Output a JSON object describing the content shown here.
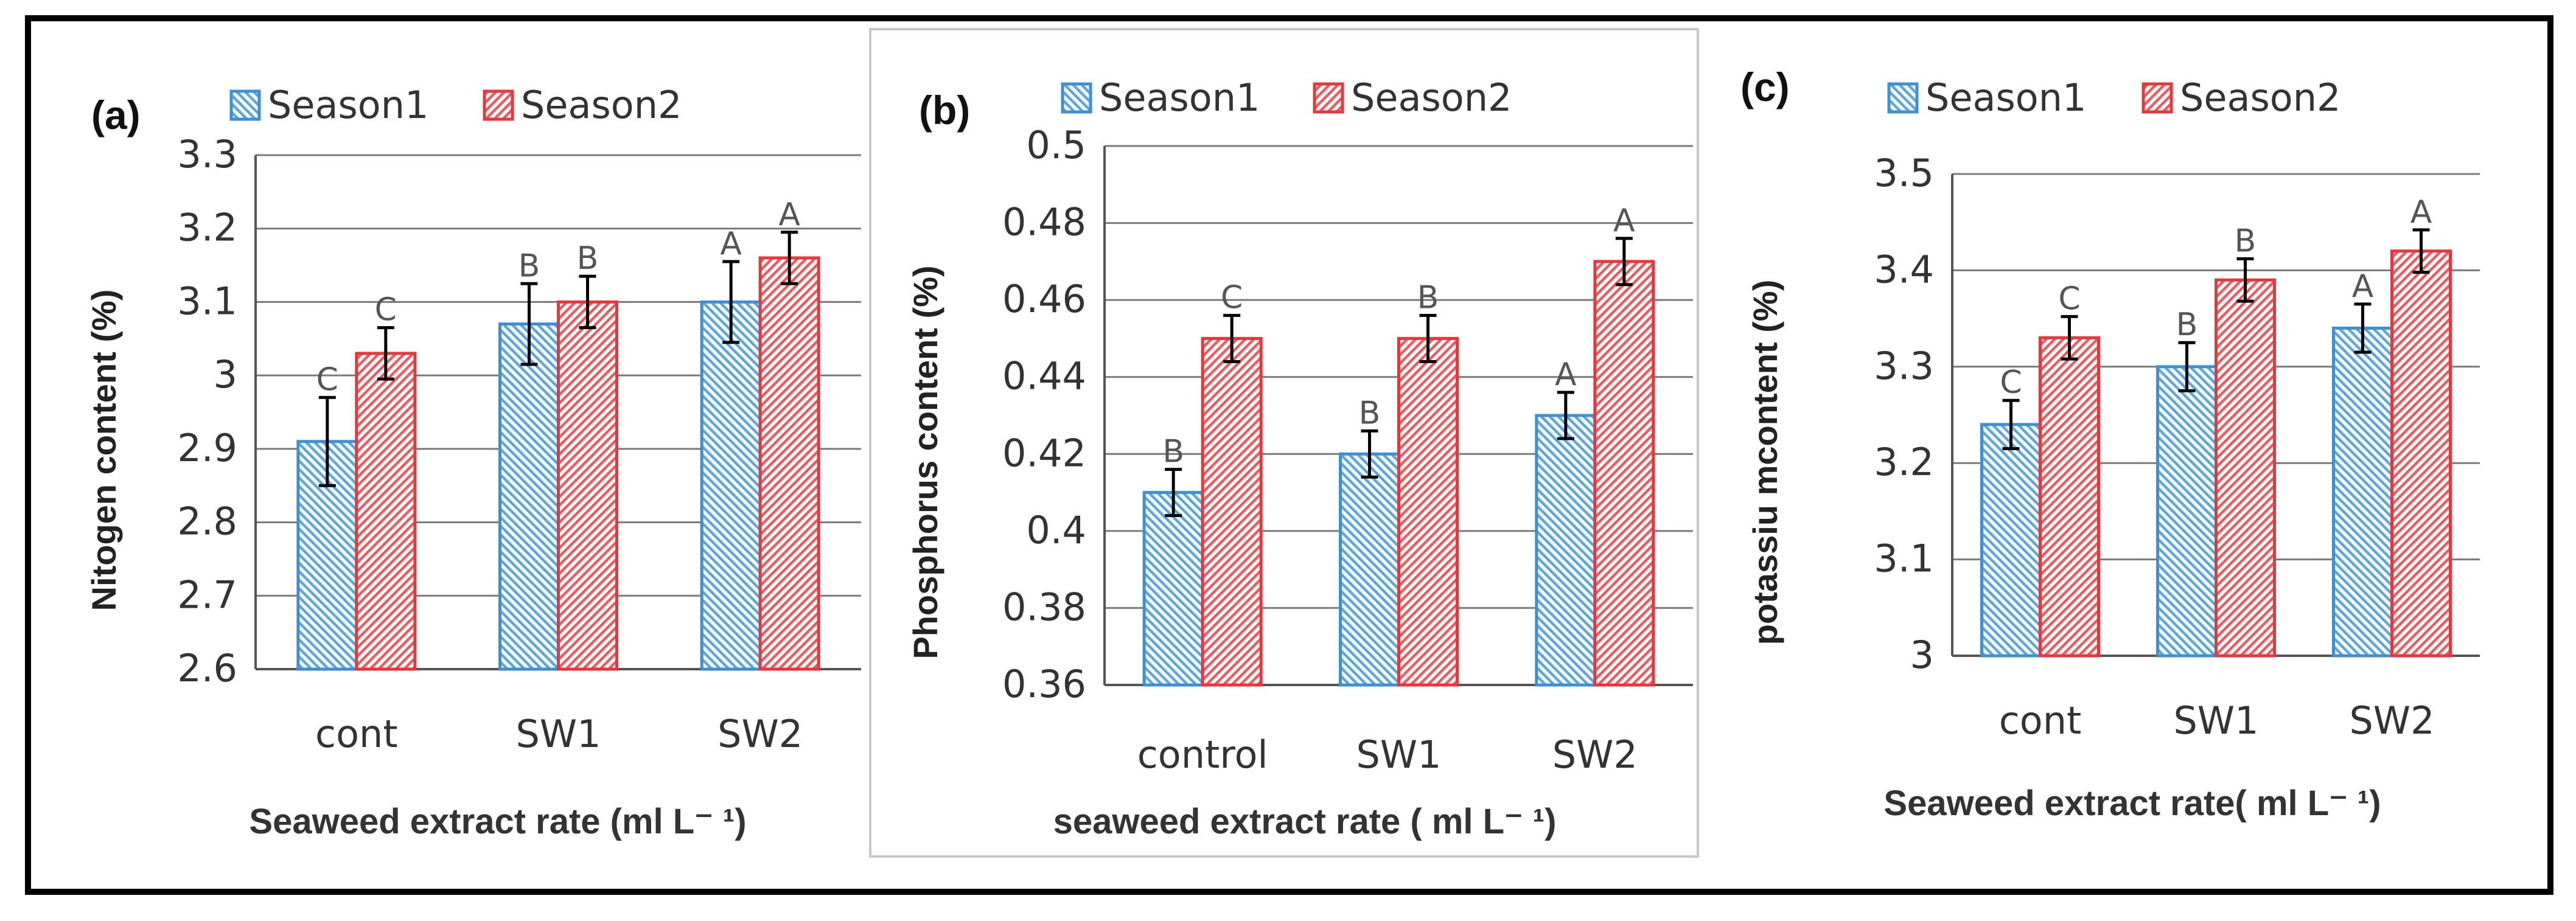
{
  "colors": {
    "season1_stroke": "#3d8fd6",
    "season1_hatch": "#5aa7e6",
    "season2_stroke": "#e8363b",
    "season2_hatch": "#ef5a5e",
    "grid": "#7a7a7a",
    "frame": "#000000"
  },
  "legend": {
    "season1": "Season1",
    "season2": "Season2"
  },
  "chart_data": [
    {
      "type": "bar",
      "panel": "(a)",
      "categories": [
        "cont",
        "SW1",
        "SW2"
      ],
      "series": [
        {
          "name": "Season1",
          "values": [
            2.91,
            3.07,
            3.1
          ],
          "errors": [
            0.06,
            0.055,
            0.055
          ],
          "letters": [
            "C",
            "B",
            "A"
          ]
        },
        {
          "name": "Season2",
          "values": [
            3.03,
            3.1,
            3.16
          ],
          "errors": [
            0.035,
            0.035,
            0.035
          ],
          "letters": [
            "C",
            "B",
            "A"
          ]
        }
      ],
      "ylabel": "Nitogen content (%)",
      "xlabel": "Seaweed extract rate (ml L⁻ ¹)",
      "ylim": [
        2.6,
        3.3
      ],
      "yticks": [
        "2.6",
        "2.7",
        "2.8",
        "2.9",
        "3",
        "3.1",
        "3.2",
        "3.3"
      ],
      "grid": true
    },
    {
      "type": "bar",
      "panel": "(b)",
      "categories": [
        "control",
        "SW1",
        "SW2"
      ],
      "series": [
        {
          "name": "Season1",
          "values": [
            0.41,
            0.42,
            0.43
          ],
          "errors": [
            0.006,
            0.006,
            0.006
          ],
          "letters": [
            "B",
            "B",
            "A"
          ]
        },
        {
          "name": "Season2",
          "values": [
            0.45,
            0.45,
            0.47
          ],
          "errors": [
            0.006,
            0.006,
            0.006
          ],
          "letters": [
            "C",
            "B",
            "A"
          ]
        }
      ],
      "ylabel": "Phosphorus content (%)",
      "xlabel": "seaweed extract rate ( ml L⁻ ¹)",
      "ylim": [
        0.36,
        0.5
      ],
      "yticks": [
        "0.36",
        "0.38",
        "0.4",
        "0.42",
        "0.44",
        "0.46",
        "0.48",
        "0.5"
      ],
      "grid": true
    },
    {
      "type": "bar",
      "panel": "(c)",
      "categories": [
        "cont",
        "SW1",
        "SW2"
      ],
      "series": [
        {
          "name": "Season1",
          "values": [
            3.24,
            3.3,
            3.34
          ],
          "errors": [
            0.025,
            0.025,
            0.025
          ],
          "letters": [
            "C",
            "B",
            "A"
          ]
        },
        {
          "name": "Season2",
          "values": [
            3.33,
            3.39,
            3.42
          ],
          "errors": [
            0.022,
            0.022,
            0.022
          ],
          "letters": [
            "C",
            "B",
            "A"
          ]
        }
      ],
      "ylabel": "potassiu mcontent (%)",
      "xlabel": "Seaweed extract rate( ml L⁻ ¹)",
      "ylim": [
        3.0,
        3.5
      ],
      "yticks": [
        "3",
        "3.1",
        "3.2",
        "3.3",
        "3.4",
        "3.5"
      ],
      "grid": true
    }
  ]
}
